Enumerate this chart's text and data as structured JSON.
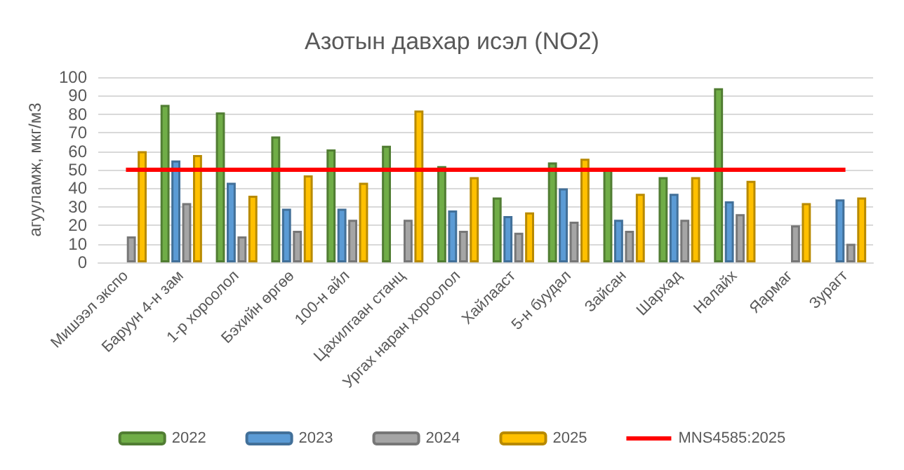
{
  "chart_data": {
    "type": "bar",
    "title": "Азотын давхар исэл (NO2)",
    "ylabel": "агууламж, мкг/м3",
    "categories": [
      "Мишээл экспо",
      "Баруун 4-н зам",
      "1-р хороолол",
      "Бэхийн өргөө",
      "100-н айл",
      "Цахилгаан станц",
      "Ургах наран хороолол",
      "Хайлааст",
      "5-н буудал",
      "Зайсан",
      "Шархад",
      "Налайх",
      "Яармаг",
      "Зурагт"
    ],
    "series": [
      {
        "name": "2022",
        "color": "#70ad47",
        "values": [
          null,
          85,
          81,
          68,
          61,
          63,
          52,
          35,
          54,
          50,
          46,
          94,
          null,
          null
        ]
      },
      {
        "name": "2023",
        "color": "#5b9bd5",
        "values": [
          null,
          55,
          43,
          29,
          29,
          null,
          28,
          25,
          40,
          23,
          37,
          33,
          null,
          34
        ]
      },
      {
        "name": "2024",
        "color": "#a5a5a5",
        "values": [
          14,
          32,
          14,
          17,
          23,
          23,
          17,
          16,
          22,
          17,
          23,
          26,
          20,
          10
        ]
      },
      {
        "name": "2025",
        "color": "#ffc000",
        "values": [
          60,
          58,
          36,
          47,
          43,
          82,
          46,
          27,
          56,
          37,
          46,
          44,
          32,
          35
        ]
      },
      {
        "name": "MNS4585:2025",
        "type": "line",
        "color": "#ff0000",
        "values": [
          50,
          50,
          50,
          50,
          50,
          50,
          50,
          50,
          50,
          50,
          50,
          50,
          50,
          50
        ]
      }
    ],
    "ylim": [
      0,
      100
    ],
    "yticks": [
      0,
      10,
      20,
      30,
      40,
      50,
      60,
      70,
      80,
      90,
      100
    ],
    "grid": "y",
    "legend": "bottom"
  }
}
